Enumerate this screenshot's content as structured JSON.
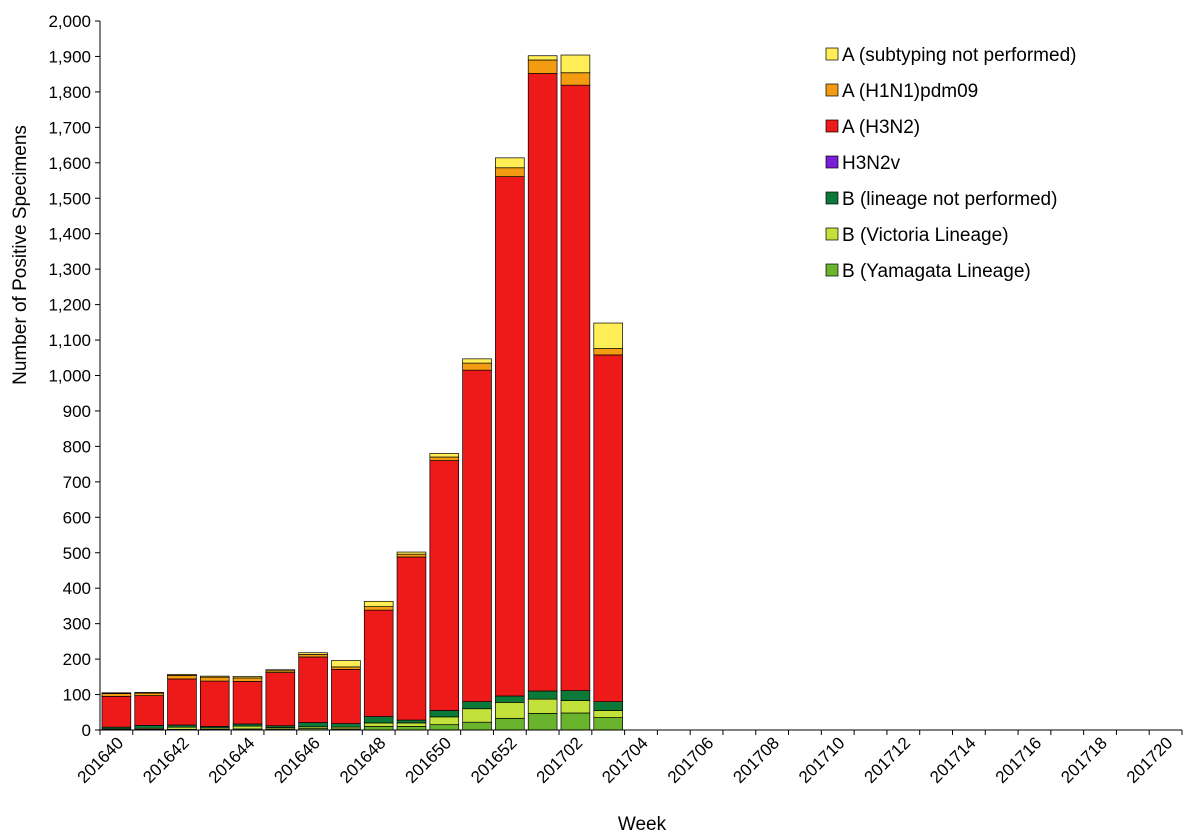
{
  "chart_data": {
    "type": "bar",
    "stacked": true,
    "xlabel": "Week",
    "ylabel": "Number of Positive Specimens",
    "ylim": [
      0,
      2000
    ],
    "ytick_step": 100,
    "legend_position": "top-right",
    "grid": false,
    "categories": [
      "201640",
      "201641",
      "201642",
      "201643",
      "201644",
      "201645",
      "201646",
      "201647",
      "201648",
      "201649",
      "201650",
      "201651",
      "201652",
      "201701",
      "201702",
      "201703",
      "201704",
      "201705",
      "201706",
      "201707",
      "201708",
      "201709",
      "201710",
      "201711",
      "201712",
      "201713",
      "201714",
      "201715",
      "201716",
      "201717",
      "201718",
      "201719",
      "201720"
    ],
    "x_tick_labels": [
      "201640",
      "201642",
      "201644",
      "201646",
      "201648",
      "201650",
      "201652",
      "201702",
      "201704",
      "201706",
      "201708",
      "201710",
      "201712",
      "201714",
      "201716",
      "201718",
      "201720"
    ],
    "series": [
      {
        "name": "B (Yamagata Lineage)",
        "color": "#6ab42d",
        "values": [
          1,
          2,
          2,
          2,
          3,
          3,
          4,
          3,
          10,
          10,
          15,
          22,
          33,
          47,
          48,
          35,
          0,
          0,
          0,
          0,
          0,
          0,
          0,
          0,
          0,
          0,
          0,
          0,
          0,
          0,
          0,
          0,
          0
        ]
      },
      {
        "name": "B (Victoria Lineage)",
        "color": "#c3e13b",
        "values": [
          2,
          3,
          6,
          4,
          8,
          4,
          5,
          5,
          10,
          10,
          22,
          38,
          45,
          40,
          35,
          20,
          0,
          0,
          0,
          0,
          0,
          0,
          0,
          0,
          0,
          0,
          0,
          0,
          0,
          0,
          0,
          0,
          0
        ]
      },
      {
        "name": "B (lineage not performed)",
        "color": "#0b7a38",
        "values": [
          5,
          8,
          6,
          4,
          6,
          5,
          12,
          10,
          18,
          8,
          18,
          20,
          18,
          23,
          28,
          25,
          0,
          0,
          0,
          0,
          0,
          0,
          0,
          0,
          0,
          0,
          0,
          0,
          0,
          0,
          0,
          0,
          0
        ]
      },
      {
        "name": "H3N2v",
        "color": "#7a1fd6",
        "values": [
          0,
          0,
          0,
          0,
          0,
          0,
          0,
          0,
          0,
          0,
          0,
          0,
          0,
          0,
          0,
          0,
          0,
          0,
          0,
          0,
          0,
          0,
          0,
          0,
          0,
          0,
          0,
          0,
          0,
          0,
          0,
          0,
          0
        ]
      },
      {
        "name": "A (H3N2)",
        "color": "#ee1a1a",
        "values": [
          87,
          84,
          130,
          128,
          120,
          150,
          185,
          153,
          300,
          460,
          705,
          935,
          1465,
          1742,
          1708,
          978,
          0,
          0,
          0,
          0,
          0,
          0,
          0,
          0,
          0,
          0,
          0,
          0,
          0,
          0,
          0,
          0,
          0
        ]
      },
      {
        "name": "A (H1N1)pdm09",
        "color": "#f39c12",
        "values": [
          8,
          7,
          10,
          11,
          10,
          5,
          7,
          7,
          10,
          8,
          10,
          20,
          25,
          38,
          35,
          18,
          0,
          0,
          0,
          0,
          0,
          0,
          0,
          0,
          0,
          0,
          0,
          0,
          0,
          0,
          0,
          0,
          0
        ]
      },
      {
        "name": "A (subtyping not performed)",
        "color": "#ffee55",
        "values": [
          2,
          2,
          3,
          3,
          4,
          3,
          5,
          18,
          15,
          6,
          10,
          12,
          28,
          12,
          50,
          72,
          0,
          0,
          0,
          0,
          0,
          0,
          0,
          0,
          0,
          0,
          0,
          0,
          0,
          0,
          0,
          0,
          0
        ]
      }
    ]
  }
}
